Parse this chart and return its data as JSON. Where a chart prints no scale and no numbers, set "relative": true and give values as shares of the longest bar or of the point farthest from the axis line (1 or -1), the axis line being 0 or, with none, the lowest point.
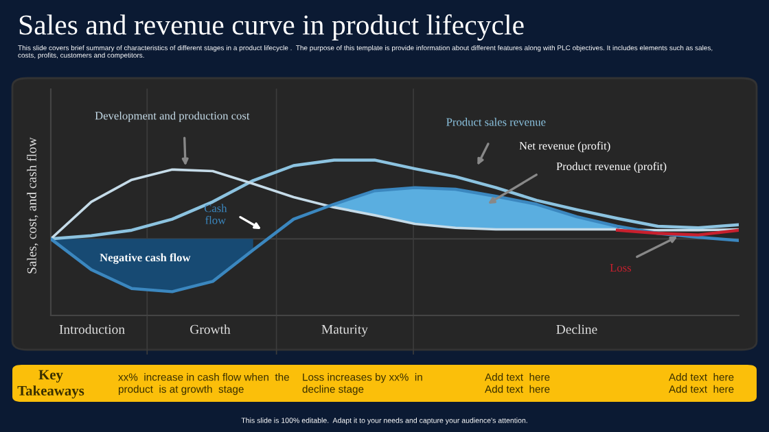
{
  "chart_data": {
    "type": "line",
    "relative": true,
    "title": "Sales and revenue curve in product lifecycle",
    "subtitle": "This slide covers brief summary of characteristics of different stages in a product lifecycle .  The purpose of this template is provide information about different features along with PLC objectives. It includes elements such as sales,\ncosts, profits, customers and competitors.",
    "ylabel": "Sales, cost, and cash flow",
    "categories": [
      null,
      null,
      null,
      null,
      null,
      null,
      null,
      null,
      null,
      null,
      null,
      null,
      null,
      null,
      null,
      null,
      null,
      null
    ],
    "series": [
      {
        "name": "Negative cash flow",
        "type": "area",
        "color": "#174a73",
        "values": [
          0,
          -0.39,
          -0.63,
          -0.67,
          -0.54,
          -0.14,
          null,
          null,
          null,
          null,
          null,
          null,
          null,
          null,
          null,
          null,
          null,
          null
        ]
      },
      {
        "name": "Product sales revenue",
        "color": "#8cc3e0",
        "values": [
          0,
          0.04,
          0.11,
          0.25,
          0.47,
          0.74,
          0.93,
          1,
          1,
          0.89,
          0.79,
          0.65,
          0.49,
          0.37,
          0.26,
          0.16,
          0.14,
          0.18
        ]
      },
      {
        "name": "Development and production cost",
        "color": "#c5dbe8",
        "values": [
          0,
          0.47,
          0.75,
          0.88,
          0.86,
          0.7,
          0.53,
          0.4,
          0.3,
          0.19,
          0.14,
          0.12,
          0.12,
          0.12,
          0.12,
          0.11,
          0.11,
          0.12
        ]
      },
      {
        "name": "Cash\nflow",
        "color": "#3b87bf",
        "values": [
          0,
          -0.39,
          -0.63,
          -0.67,
          -0.54,
          -0.14,
          0.25,
          0.44,
          0.61,
          0.65,
          0.63,
          0.54,
          0.44,
          0.28,
          0.16,
          0.07,
          0.02,
          -0.02
        ],
        "lower": [
          null,
          null,
          null,
          null,
          null,
          null,
          null,
          0.4,
          0.3,
          0.19,
          0.14,
          0.12,
          0.12,
          0.12,
          0.12,
          null,
          null,
          null
        ],
        "upper": [
          null,
          null,
          null,
          null,
          null,
          null,
          null,
          0.44,
          0.61,
          0.65,
          0.63,
          0.54,
          0.44,
          0.28,
          0.16,
          null,
          null,
          null
        ]
      },
      {
        "name": "Loss",
        "color": "#c8202e",
        "values": [
          null,
          null,
          null,
          null,
          null,
          null,
          null,
          null,
          null,
          null,
          null,
          null,
          null,
          null,
          0.11,
          0.07,
          0.05,
          0.11
        ]
      }
    ],
    "annotations": [
      "Introduction",
      "Growth",
      "Maturity",
      "Decline",
      "Net revenue (profit)",
      "Product revenue (profit)",
      "Key\nTakeaways",
      "xx%  increase in cash flow when  the\nproduct  is at growth  stage",
      "Loss increases by xx%  in\ndecline stage",
      "Add text  here\nAdd text  here",
      "Add text  here\nAdd text  here",
      "This slide is 100% editable.  Adapt it to your needs and capture your audience's attention."
    ],
    "legend": false,
    "grid": false
  }
}
